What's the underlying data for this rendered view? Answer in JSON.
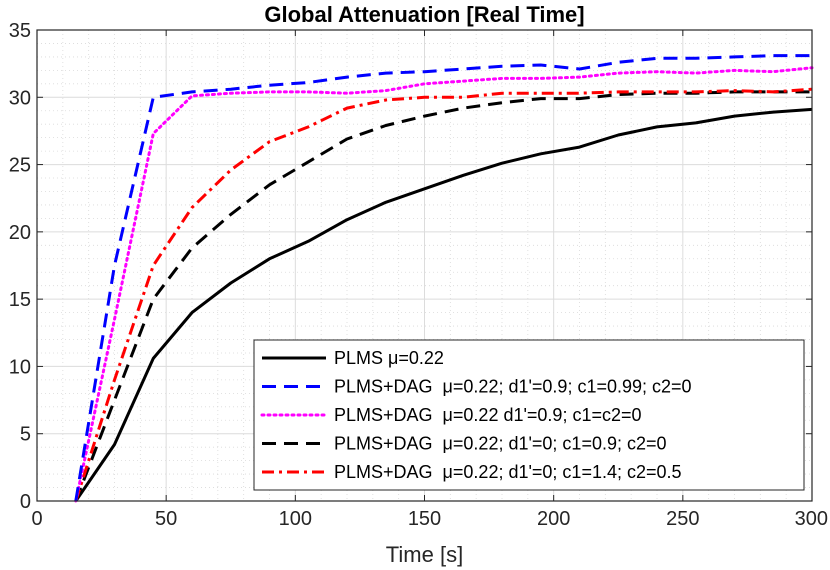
{
  "chart_data": {
    "type": "line",
    "title": "Global Attenuation [Real Time]",
    "xlabel": "Time [s]",
    "ylabel": "",
    "xlim": [
      0,
      300
    ],
    "ylim": [
      0,
      35
    ],
    "x_ticks": [
      "0",
      "50",
      "100",
      "150",
      "200",
      "250",
      "300"
    ],
    "y_ticks": [
      "0",
      "5",
      "10",
      "15",
      "20",
      "25",
      "30",
      "35"
    ],
    "grid": true,
    "minor_grid": true,
    "legend_position": "bottom-right",
    "series": [
      {
        "name": "PLMS μ=0.22",
        "color": "#000000",
        "style": "solid",
        "x": [
          15,
          30,
          45,
          60,
          75,
          90,
          105,
          120,
          135,
          150,
          165,
          180,
          195,
          210,
          225,
          240,
          255,
          270,
          285,
          300
        ],
        "y": [
          0,
          4.2,
          10.6,
          14.0,
          16.2,
          18.0,
          19.3,
          20.9,
          22.2,
          23.2,
          24.2,
          25.1,
          25.8,
          26.3,
          27.2,
          27.8,
          28.1,
          28.6,
          28.9,
          29.1
        ]
      },
      {
        "name": "PLMS+DAG  μ=0.22; d1'=0.9; c1=0.99; c2=0",
        "color": "#0000ff",
        "style": "dashed",
        "x": [
          15,
          30,
          45,
          60,
          75,
          90,
          105,
          120,
          135,
          150,
          165,
          180,
          195,
          210,
          225,
          240,
          255,
          270,
          285,
          300
        ],
        "y": [
          0,
          17.5,
          30.0,
          30.4,
          30.6,
          30.9,
          31.1,
          31.5,
          31.8,
          31.9,
          32.1,
          32.3,
          32.4,
          32.1,
          32.6,
          32.9,
          32.9,
          33.0,
          33.1,
          33.1
        ]
      },
      {
        "name": "PLMS+DAG  μ=0.22 d1'=0.9; c1=c2=0",
        "color": "#ff00ff",
        "style": "dotted",
        "x": [
          15,
          30,
          45,
          60,
          75,
          90,
          105,
          120,
          135,
          150,
          165,
          180,
          195,
          210,
          225,
          240,
          255,
          270,
          285,
          300
        ],
        "y": [
          0,
          13.5,
          27.3,
          30.1,
          30.3,
          30.4,
          30.4,
          30.3,
          30.5,
          31.0,
          31.2,
          31.4,
          31.4,
          31.5,
          31.8,
          31.9,
          31.8,
          32.0,
          31.9,
          32.2
        ]
      },
      {
        "name": "PLMS+DAG  μ=0.22; d1'=0; c1=0.9; c2=0",
        "color": "#000000",
        "style": "dashed",
        "x": [
          15,
          30,
          45,
          60,
          75,
          90,
          105,
          120,
          135,
          150,
          165,
          180,
          195,
          210,
          225,
          240,
          255,
          270,
          285,
          300
        ],
        "y": [
          0,
          7.5,
          15.0,
          18.8,
          21.3,
          23.5,
          25.2,
          26.9,
          27.9,
          28.6,
          29.2,
          29.6,
          29.9,
          29.9,
          30.2,
          30.3,
          30.3,
          30.4,
          30.4,
          30.4
        ]
      },
      {
        "name": "PLMS+DAG  μ=0.22; d1'=0; c1=1.4; c2=0.5",
        "color": "#ff0000",
        "style": "dashdot",
        "x": [
          15,
          30,
          45,
          60,
          75,
          90,
          105,
          120,
          135,
          150,
          165,
          180,
          195,
          210,
          225,
          240,
          255,
          270,
          285,
          300
        ],
        "y": [
          0,
          9.0,
          17.5,
          21.8,
          24.6,
          26.7,
          27.8,
          29.2,
          29.8,
          30.0,
          30.0,
          30.3,
          30.3,
          30.3,
          30.4,
          30.4,
          30.4,
          30.5,
          30.4,
          30.6
        ]
      }
    ]
  }
}
